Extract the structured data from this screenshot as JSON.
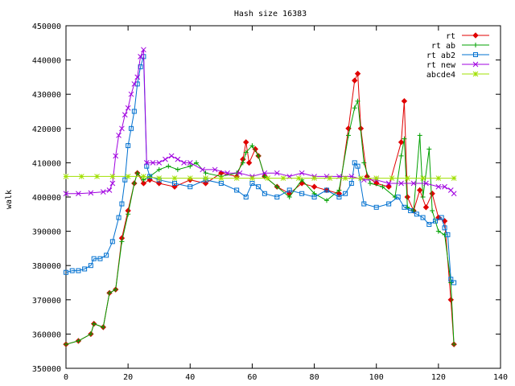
{
  "chart_data": {
    "type": "line",
    "title": "Hash size 16383",
    "xlabel": "",
    "ylabel": "walk",
    "xlim": [
      0,
      140
    ],
    "ylim": [
      350000,
      450000
    ],
    "x_ticks": [
      0,
      20,
      40,
      60,
      80,
      100,
      120,
      140
    ],
    "y_ticks": [
      350000,
      360000,
      370000,
      380000,
      390000,
      400000,
      410000,
      420000,
      430000,
      440000,
      450000
    ],
    "grid": false,
    "legend_position": "top-right",
    "series": [
      {
        "name": "rt",
        "color": "#e00000",
        "marker": "diamond",
        "points": [
          [
            0,
            357000
          ],
          [
            4,
            358000
          ],
          [
            8,
            360000
          ],
          [
            9,
            363000
          ],
          [
            12,
            362000
          ],
          [
            14,
            372000
          ],
          [
            16,
            373000
          ],
          [
            18,
            388000
          ],
          [
            20,
            396000
          ],
          [
            22,
            404000
          ],
          [
            23,
            407000
          ],
          [
            25,
            404000
          ],
          [
            27,
            405000
          ],
          [
            30,
            404000
          ],
          [
            35,
            403000
          ],
          [
            40,
            405000
          ],
          [
            45,
            404000
          ],
          [
            50,
            407000
          ],
          [
            55,
            406000
          ],
          [
            57,
            411000
          ],
          [
            58,
            416000
          ],
          [
            59,
            410000
          ],
          [
            61,
            414000
          ],
          [
            62,
            412000
          ],
          [
            64,
            406000
          ],
          [
            68,
            403000
          ],
          [
            72,
            401000
          ],
          [
            76,
            404000
          ],
          [
            80,
            403000
          ],
          [
            84,
            402000
          ],
          [
            88,
            401000
          ],
          [
            91,
            420000
          ],
          [
            93,
            434000
          ],
          [
            94,
            436000
          ],
          [
            95,
            420000
          ],
          [
            97,
            406000
          ],
          [
            100,
            404000
          ],
          [
            104,
            403000
          ],
          [
            108,
            416000
          ],
          [
            109,
            428000
          ],
          [
            110,
            400000
          ],
          [
            112,
            396000
          ],
          [
            114,
            402000
          ],
          [
            116,
            397000
          ],
          [
            118,
            401000
          ],
          [
            120,
            394000
          ],
          [
            122,
            393000
          ],
          [
            124,
            370000
          ],
          [
            125,
            357000
          ]
        ]
      },
      {
        "name": "rt ab",
        "color": "#00a000",
        "marker": "plus",
        "points": [
          [
            0,
            357000
          ],
          [
            4,
            358000
          ],
          [
            8,
            360000
          ],
          [
            9,
            363000
          ],
          [
            12,
            362000
          ],
          [
            14,
            372000
          ],
          [
            16,
            373000
          ],
          [
            18,
            387000
          ],
          [
            20,
            395000
          ],
          [
            22,
            404000
          ],
          [
            23,
            407000
          ],
          [
            25,
            405000
          ],
          [
            27,
            406000
          ],
          [
            30,
            408000
          ],
          [
            33,
            409000
          ],
          [
            36,
            408000
          ],
          [
            40,
            409000
          ],
          [
            42,
            410000
          ],
          [
            45,
            407000
          ],
          [
            50,
            406000
          ],
          [
            55,
            407000
          ],
          [
            57,
            410000
          ],
          [
            58,
            413000
          ],
          [
            60,
            415000
          ],
          [
            62,
            412000
          ],
          [
            64,
            406000
          ],
          [
            68,
            403000
          ],
          [
            72,
            400000
          ],
          [
            76,
            405000
          ],
          [
            80,
            401000
          ],
          [
            84,
            399000
          ],
          [
            88,
            402000
          ],
          [
            91,
            418000
          ],
          [
            93,
            426000
          ],
          [
            94,
            428000
          ],
          [
            96,
            410000
          ],
          [
            98,
            404000
          ],
          [
            102,
            403000
          ],
          [
            106,
            400000
          ],
          [
            108,
            412000
          ],
          [
            109,
            417000
          ],
          [
            110,
            397000
          ],
          [
            112,
            396000
          ],
          [
            114,
            418000
          ],
          [
            115,
            400000
          ],
          [
            117,
            414000
          ],
          [
            118,
            396000
          ],
          [
            120,
            390000
          ],
          [
            122,
            389000
          ],
          [
            124,
            375000
          ],
          [
            125,
            357000
          ]
        ]
      },
      {
        "name": "rt ab2",
        "color": "#0070d0",
        "marker": "square",
        "points": [
          [
            0,
            378000
          ],
          [
            2,
            378500
          ],
          [
            4,
            378500
          ],
          [
            6,
            379000
          ],
          [
            8,
            380000
          ],
          [
            9,
            382000
          ],
          [
            11,
            382000
          ],
          [
            13,
            383000
          ],
          [
            15,
            387000
          ],
          [
            17,
            394000
          ],
          [
            18,
            398000
          ],
          [
            19,
            405000
          ],
          [
            20,
            415000
          ],
          [
            21,
            420000
          ],
          [
            22,
            425000
          ],
          [
            23,
            433000
          ],
          [
            24,
            438000
          ],
          [
            25,
            441000
          ],
          [
            26,
            409000
          ],
          [
            27,
            406000
          ],
          [
            30,
            405000
          ],
          [
            35,
            404000
          ],
          [
            40,
            403000
          ],
          [
            45,
            405000
          ],
          [
            50,
            404000
          ],
          [
            55,
            402000
          ],
          [
            58,
            400000
          ],
          [
            60,
            404000
          ],
          [
            62,
            403000
          ],
          [
            64,
            401000
          ],
          [
            68,
            400000
          ],
          [
            72,
            402000
          ],
          [
            76,
            401000
          ],
          [
            80,
            400000
          ],
          [
            84,
            402000
          ],
          [
            88,
            400000
          ],
          [
            90,
            401000
          ],
          [
            92,
            404000
          ],
          [
            93,
            410000
          ],
          [
            94,
            409000
          ],
          [
            96,
            398000
          ],
          [
            100,
            397000
          ],
          [
            104,
            398000
          ],
          [
            107,
            400000
          ],
          [
            109,
            397000
          ],
          [
            111,
            396000
          ],
          [
            113,
            395000
          ],
          [
            115,
            394000
          ],
          [
            117,
            392000
          ],
          [
            119,
            393000
          ],
          [
            121,
            394000
          ],
          [
            122,
            391000
          ],
          [
            123,
            389000
          ],
          [
            124,
            376000
          ],
          [
            125,
            375000
          ]
        ]
      },
      {
        "name": "rt new",
        "color": "#a000e0",
        "marker": "cross",
        "points": [
          [
            0,
            401000
          ],
          [
            4,
            401000
          ],
          [
            8,
            401200
          ],
          [
            12,
            401500
          ],
          [
            14,
            402000
          ],
          [
            15,
            404000
          ],
          [
            16,
            412000
          ],
          [
            17,
            418000
          ],
          [
            18,
            420000
          ],
          [
            19,
            424000
          ],
          [
            20,
            426000
          ],
          [
            21,
            430000
          ],
          [
            22,
            433000
          ],
          [
            23,
            435000
          ],
          [
            24,
            441000
          ],
          [
            25,
            443000
          ],
          [
            26,
            410000
          ],
          [
            28,
            410000
          ],
          [
            30,
            410000
          ],
          [
            32,
            411000
          ],
          [
            34,
            412000
          ],
          [
            36,
            411000
          ],
          [
            38,
            410000
          ],
          [
            40,
            410000
          ],
          [
            44,
            408000
          ],
          [
            48,
            408000
          ],
          [
            52,
            407000
          ],
          [
            56,
            407000
          ],
          [
            60,
            406000
          ],
          [
            64,
            407000
          ],
          [
            68,
            407000
          ],
          [
            72,
            406000
          ],
          [
            76,
            407000
          ],
          [
            80,
            406000
          ],
          [
            84,
            406000
          ],
          [
            88,
            406000
          ],
          [
            92,
            406000
          ],
          [
            96,
            405000
          ],
          [
            100,
            405000
          ],
          [
            104,
            404000
          ],
          [
            108,
            404000
          ],
          [
            112,
            404000
          ],
          [
            116,
            404000
          ],
          [
            120,
            403000
          ],
          [
            122,
            403000
          ],
          [
            124,
            402000
          ],
          [
            125,
            401000
          ]
        ]
      },
      {
        "name": "abcde4",
        "color": "#a0e000",
        "marker": "star",
        "points": [
          [
            0,
            406000
          ],
          [
            5,
            406000
          ],
          [
            10,
            406000
          ],
          [
            15,
            406000
          ],
          [
            20,
            406000
          ],
          [
            25,
            406000
          ],
          [
            30,
            405500
          ],
          [
            35,
            405500
          ],
          [
            40,
            405500
          ],
          [
            45,
            405500
          ],
          [
            50,
            405500
          ],
          [
            55,
            405500
          ],
          [
            60,
            405500
          ],
          [
            65,
            405500
          ],
          [
            70,
            405500
          ],
          [
            75,
            405500
          ],
          [
            80,
            405500
          ],
          [
            85,
            405500
          ],
          [
            90,
            405500
          ],
          [
            95,
            405500
          ],
          [
            100,
            405500
          ],
          [
            105,
            405500
          ],
          [
            110,
            405500
          ],
          [
            115,
            405500
          ],
          [
            120,
            405500
          ],
          [
            125,
            405500
          ]
        ]
      }
    ]
  }
}
